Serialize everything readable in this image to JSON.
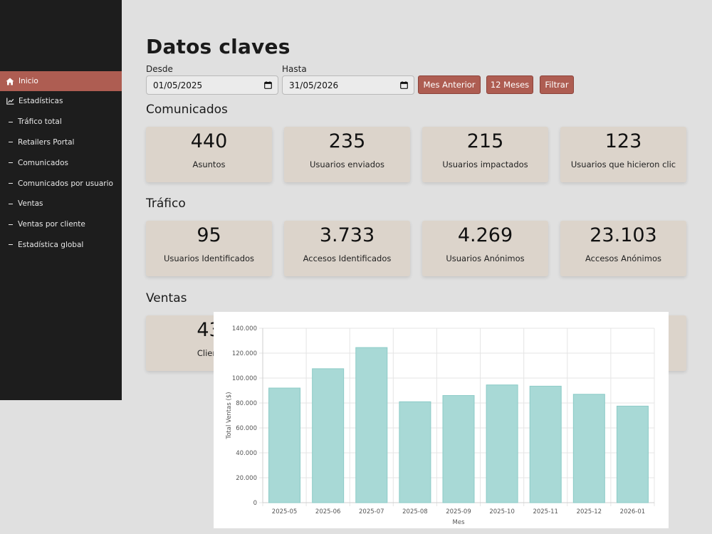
{
  "sidebar": {
    "items": [
      {
        "label": "Inicio",
        "icon": "home-icon",
        "active": true
      },
      {
        "label": "Estadísticas",
        "icon": "chart-line-icon",
        "active": false
      },
      {
        "label": "Tráfico total",
        "icon": "dash-icon",
        "active": false
      },
      {
        "label": "Retailers Portal",
        "icon": "dash-icon",
        "active": false
      },
      {
        "label": "Comunicados",
        "icon": "dash-icon",
        "active": false
      },
      {
        "label": "Comunicados por usuario",
        "icon": "dash-icon",
        "active": false
      },
      {
        "label": "Ventas",
        "icon": "dash-icon",
        "active": false
      },
      {
        "label": "Ventas por cliente",
        "icon": "dash-icon",
        "active": false
      },
      {
        "label": "Estadística global",
        "icon": "dash-icon",
        "active": false
      }
    ]
  },
  "header": {
    "title": "Datos claves"
  },
  "filters": {
    "from_label": "Desde",
    "from_value": "01/05/2025",
    "to_label": "Hasta",
    "to_value": "31/05/2026",
    "btn_prev_month": "Mes Anterior",
    "btn_12_months": "12 Meses",
    "btn_filter": "Filtrar"
  },
  "sections": {
    "comunicados": {
      "title": "Comunicados",
      "cards": [
        {
          "value": "440",
          "label": "Asuntos"
        },
        {
          "value": "235",
          "label": "Usuarios enviados"
        },
        {
          "value": "215",
          "label": "Usuarios impactados"
        },
        {
          "value": "123",
          "label": "Usuarios que hicieron clic"
        }
      ]
    },
    "trafico": {
      "title": "Tráfico",
      "cards": [
        {
          "value": "95",
          "label": "Usuarios Identificados"
        },
        {
          "value": "3.733",
          "label": "Accesos Identificados"
        },
        {
          "value": "4.269",
          "label": "Usuarios Anónimos"
        },
        {
          "value": "23.103",
          "label": "Accesos Anónimos"
        }
      ]
    },
    "ventas": {
      "title": "Ventas",
      "cards": [
        {
          "value": "43",
          "label": "Client"
        }
      ]
    }
  },
  "colors": {
    "accent": "#ae5d52",
    "sidebar_bg": "#1d1d1d",
    "card_bg": "#dcd4cb",
    "page_bg": "#e0e0e0",
    "bar_fill": "#a8d9d6",
    "bar_stroke": "#8ccbc7"
  },
  "chart_data": {
    "type": "bar",
    "title": "",
    "xlabel": "Mes",
    "ylabel": "Total Ventas ($)",
    "categories": [
      "2025-05",
      "2025-06",
      "2025-07",
      "2025-08",
      "2025-09",
      "2025-10",
      "2025-11",
      "2025-12",
      "2026-01"
    ],
    "values": [
      92000,
      107500,
      124500,
      81000,
      86000,
      94500,
      93500,
      87000,
      77500
    ],
    "ylim": [
      0,
      140000
    ],
    "yticks": [
      "0",
      "20.000",
      "40.000",
      "60.000",
      "80.000",
      "100.000",
      "120.000",
      "140.000"
    ],
    "grid": true,
    "legend": "none"
  }
}
